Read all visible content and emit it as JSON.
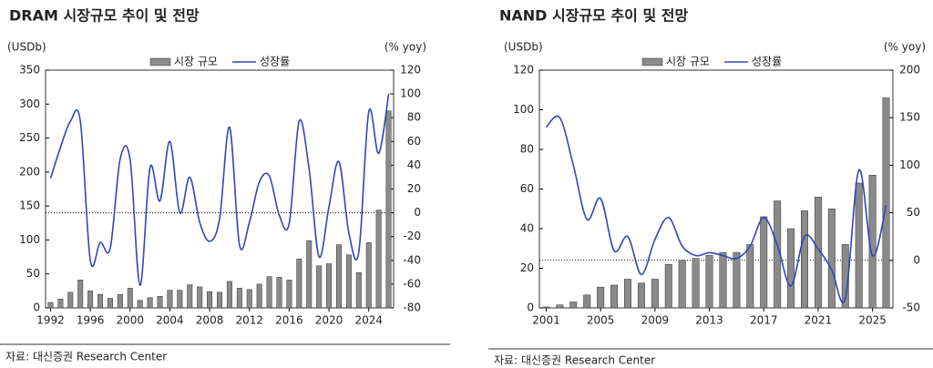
{
  "chart_data": [
    {
      "type": "combo",
      "title": "DRAM 시장규모 추이 및 전망",
      "ylabel": "(USDb)",
      "y2label": "(% yoy)",
      "source": "자료: 대신증권 Research Center",
      "x": [
        1992,
        1993,
        1994,
        1995,
        1996,
        1997,
        1998,
        1999,
        2000,
        2001,
        2002,
        2003,
        2004,
        2005,
        2006,
        2007,
        2008,
        2009,
        2010,
        2011,
        2012,
        2013,
        2014,
        2015,
        2016,
        2017,
        2018,
        2019,
        2020,
        2021,
        2022,
        2023,
        2024,
        2025,
        2026
      ],
      "xlim": [
        1991.5,
        2026.5
      ],
      "xticks": [
        1992,
        1996,
        2000,
        2004,
        2008,
        2012,
        2016,
        2020,
        2024
      ],
      "ylim": [
        0,
        350
      ],
      "yticks": [
        0,
        50,
        100,
        150,
        200,
        250,
        300,
        350
      ],
      "y2lim": [
        -80,
        120
      ],
      "y2ticks": [
        -80,
        -60,
        -40,
        -20,
        0,
        20,
        40,
        60,
        80,
        100,
        120
      ],
      "series": [
        {
          "name": "시장 규모",
          "type": "bar",
          "color": "#8a8a8a",
          "values": [
            8,
            13,
            23,
            41,
            25,
            20,
            14,
            20,
            29,
            11,
            15,
            17,
            26,
            26,
            34,
            31,
            24,
            23,
            39,
            29,
            27,
            35,
            46,
            45,
            41,
            72,
            99,
            62,
            65,
            93,
            78,
            52,
            96,
            144,
            290
          ]
        },
        {
          "name": "성장률",
          "type": "line",
          "axis": "y2",
          "color": "#3344b8",
          "values": [
            29,
            55,
            77,
            77,
            -40,
            -25,
            -30,
            45,
            45,
            -61,
            38,
            10,
            60,
            0,
            30,
            -8,
            -24,
            -5,
            72,
            -27,
            -8,
            26,
            31,
            -2,
            -9,
            77,
            37,
            -37,
            5,
            43,
            -17,
            -33,
            85,
            50,
            100
          ]
        }
      ]
    },
    {
      "type": "combo",
      "title": "NAND 시장규모 추이 및 전망",
      "ylabel": "(USDb)",
      "y2label": "(% yoy)",
      "source": "자료: 대신증권 Research Center",
      "x": [
        2001,
        2002,
        2003,
        2004,
        2005,
        2006,
        2007,
        2008,
        2009,
        2010,
        2011,
        2012,
        2013,
        2014,
        2015,
        2016,
        2017,
        2018,
        2019,
        2020,
        2021,
        2022,
        2023,
        2024,
        2025,
        2026
      ],
      "xlim": [
        2000.5,
        2026.5
      ],
      "xticks": [
        2001,
        2005,
        2009,
        2013,
        2017,
        2021,
        2025
      ],
      "ylim": [
        0,
        120
      ],
      "yticks": [
        0,
        20,
        40,
        60,
        80,
        100,
        120
      ],
      "y2lim": [
        -50,
        200
      ],
      "y2ticks": [
        -50,
        0,
        50,
        100,
        150,
        200
      ],
      "series": [
        {
          "name": "시장 규모",
          "type": "bar",
          "color": "#8a8a8a",
          "values": [
            0.5,
            1.5,
            3,
            6.5,
            10.5,
            11.5,
            14.5,
            12.5,
            14.5,
            22,
            24,
            25,
            26.5,
            28,
            28,
            32,
            46,
            54,
            40,
            49,
            56,
            50,
            32,
            63,
            67,
            106
          ]
        },
        {
          "name": "성장률",
          "type": "line",
          "axis": "y2",
          "color": "#3344b8",
          "values": [
            140,
            150,
            100,
            43,
            65,
            10,
            25,
            -15,
            22,
            45,
            15,
            5,
            8,
            5,
            2,
            15,
            45,
            16,
            -27,
            25,
            12,
            -10,
            -40,
            95,
            5,
            58
          ]
        }
      ]
    }
  ]
}
